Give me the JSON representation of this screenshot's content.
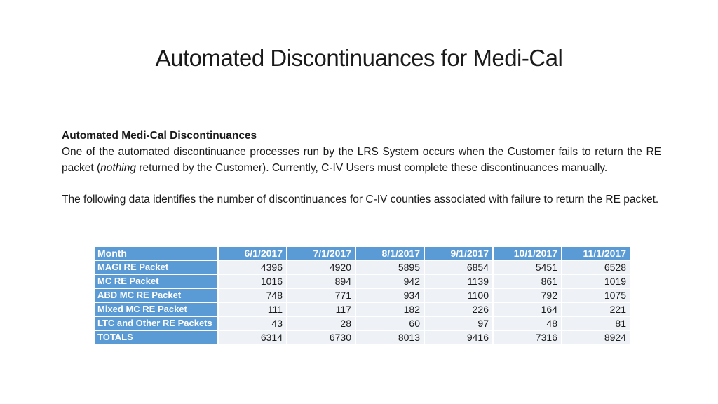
{
  "slide": {
    "title": "Automated Discontinuances for Medi-Cal",
    "section_heading": "Automated Medi-Cal Discontinuances",
    "paragraph1": {
      "before": "One of the automated discontinuance processes run by the LRS System occurs when the Customer fails to return the RE packet (",
      "italic": "nothing",
      "after": " returned by the Customer). Currently, C-IV Users must complete these discontinuances manually."
    },
    "paragraph2": "The following data identifies the number of  discontinuances for C-IV counties associated with failure to return the RE packet."
  },
  "table": {
    "header": [
      "Month",
      "6/1/2017",
      "7/1/2017",
      "8/1/2017",
      "9/1/2017",
      "10/1/2017",
      "11/1/2017"
    ],
    "rows": [
      {
        "label": "MAGI RE Packet",
        "values": [
          "4396",
          "4920",
          "5895",
          "6854",
          "5451",
          "6528"
        ]
      },
      {
        "label": "MC RE Packet",
        "values": [
          "1016",
          "894",
          "942",
          "1139",
          "861",
          "1019"
        ]
      },
      {
        "label": "ABD MC RE Packet",
        "values": [
          "748",
          "771",
          "934",
          "1100",
          "792",
          "1075"
        ]
      },
      {
        "label": "Mixed MC RE Packet",
        "values": [
          "111",
          "117",
          "182",
          "226",
          "164",
          "221"
        ]
      },
      {
        "label": "LTC and Other RE Packets",
        "values": [
          "43",
          "28",
          "60",
          "97",
          "48",
          "81"
        ]
      },
      {
        "label": "TOTALS",
        "values": [
          "6314",
          "6730",
          "8013",
          "9416",
          "7316",
          "8924"
        ]
      }
    ]
  },
  "colors": {
    "header_blue": "#5b9bd5",
    "cell_bg": "#eef1f6"
  }
}
